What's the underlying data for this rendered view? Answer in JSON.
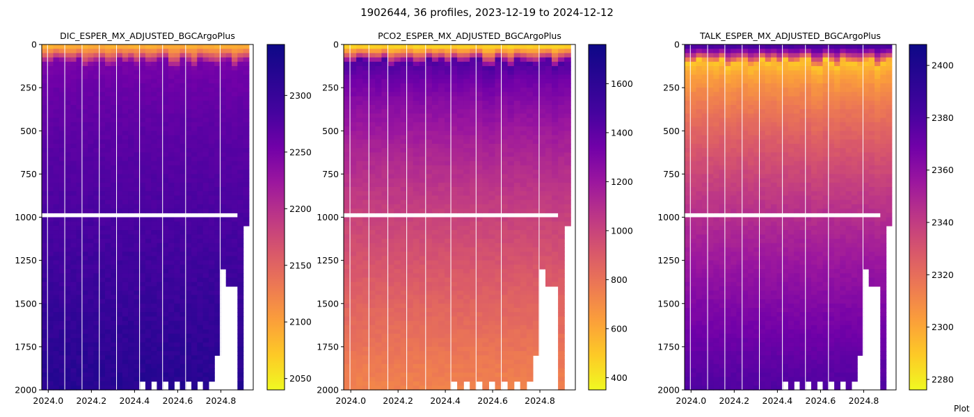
{
  "title": "1902644, 36 profiles, 2023-12-19 to 2024-12-12",
  "footer": "Plot",
  "chart_data": [
    {
      "type": "heatmap",
      "title": "DIC_ESPER_MX_ADJUSTED_BGCArgoPlus",
      "xlim": [
        2023.97,
        2024.95
      ],
      "ylim": [
        2000,
        0
      ],
      "x_ticks": [
        2024.0,
        2024.2,
        2024.4,
        2024.6,
        2024.8
      ],
      "y_ticks": [
        0,
        250,
        500,
        750,
        1000,
        1250,
        1500,
        1750,
        2000
      ],
      "colorbar": {
        "colormap": "plasma_r",
        "range": [
          2040,
          2345
        ],
        "ticks": [
          2050,
          2100,
          2150,
          2200,
          2250,
          2300
        ]
      },
      "surface_value": 2090,
      "mixed_layer_value": 2270,
      "deep_value": 2330
    },
    {
      "type": "heatmap",
      "title": "PCO2_ESPER_MX_ADJUSTED_BGCArgoPlus",
      "xlim": [
        2023.97,
        2024.95
      ],
      "ylim": [
        2000,
        0
      ],
      "x_ticks": [
        2024.0,
        2024.2,
        2024.4,
        2024.6,
        2024.8
      ],
      "y_ticks": [
        0,
        250,
        500,
        750,
        1000,
        1250,
        1500,
        1750,
        2000
      ],
      "colorbar": {
        "colormap": "plasma_r",
        "range": [
          350,
          1760
        ],
        "ticks": [
          400,
          600,
          800,
          1000,
          1200,
          1400,
          1600
        ]
      },
      "surface_value": 450,
      "mixed_layer_value": 1600,
      "deep_value": 780
    },
    {
      "type": "heatmap",
      "title": "TALK_ESPER_MX_ADJUSTED_BGCArgoPlus",
      "xlim": [
        2023.97,
        2024.95
      ],
      "ylim": [
        2000,
        0
      ],
      "x_ticks": [
        2024.0,
        2024.2,
        2024.4,
        2024.6,
        2024.8
      ],
      "y_ticks": [
        0,
        250,
        500,
        750,
        1000,
        1250,
        1500,
        1750,
        2000
      ],
      "colorbar": {
        "colormap": "plasma_r",
        "range": [
          2276,
          2408
        ],
        "ticks": [
          2280,
          2300,
          2320,
          2340,
          2360,
          2380,
          2400
        ]
      },
      "surface_value": 2395,
      "mixed_layer_value": 2290,
      "deep_value": 2390
    }
  ]
}
